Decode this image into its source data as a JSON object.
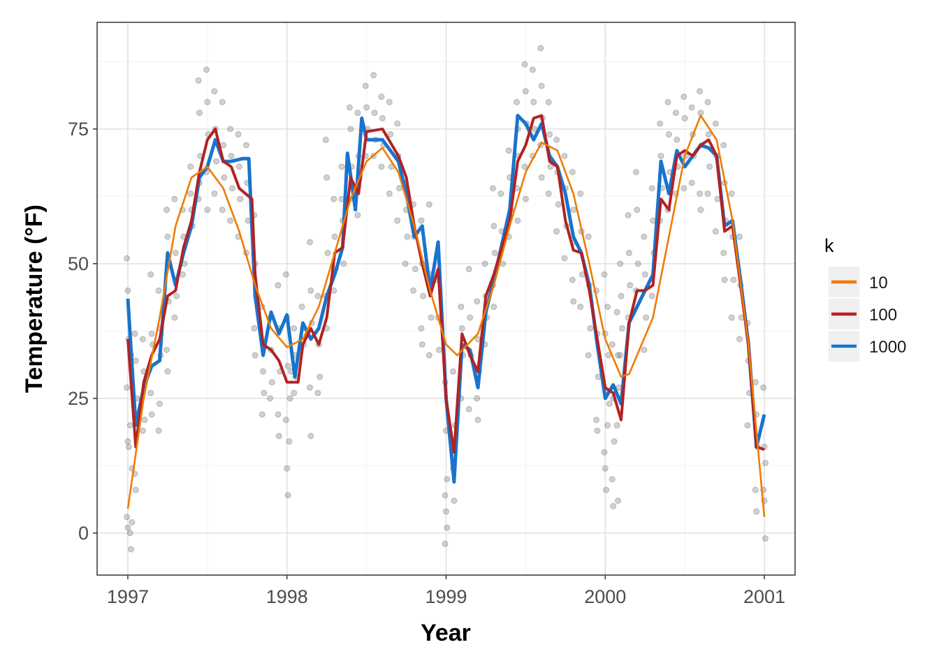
{
  "chart_data": {
    "type": "line",
    "title": "",
    "xlabel": "Year",
    "ylabel": "Temperature (°F)",
    "xlim": [
      1996.807,
      2001.193
    ],
    "ylim": [
      -7.8,
      94.8
    ],
    "x_ticks": [
      1997,
      1998,
      1999,
      2000,
      2001
    ],
    "x_tick_labels": [
      "1997",
      "1998",
      "1999",
      "2000",
      "2001"
    ],
    "y_ticks": [
      0,
      25,
      50,
      75
    ],
    "y_tick_labels": [
      "0",
      "25",
      "50",
      "75"
    ],
    "grid": true,
    "legend": {
      "title": "k",
      "placement": "right",
      "entries": [
        "10",
        "100",
        "1000"
      ]
    },
    "colors": {
      "10": "#ef7b00",
      "100": "#b22222",
      "1000": "#1874cd",
      "points": "#7a7a7a"
    },
    "series": [
      {
        "name": "1000",
        "x": [
          1997.0,
          1997.05,
          1997.1,
          1997.15,
          1997.2,
          1997.25,
          1997.3,
          1997.35,
          1997.4,
          1997.45,
          1997.5,
          1997.55,
          1997.6,
          1997.65,
          1997.72,
          1997.76,
          1997.8,
          1997.85,
          1997.9,
          1997.95,
          1998.0,
          1998.05,
          1998.1,
          1998.15,
          1998.2,
          1998.25,
          1998.3,
          1998.35,
          1998.38,
          1998.43,
          1998.47,
          1998.5,
          1998.6,
          1998.7,
          1998.75,
          1998.8,
          1998.85,
          1998.9,
          1998.95,
          1999.0,
          1999.05,
          1999.1,
          1999.15,
          1999.2,
          1999.25,
          1999.3,
          1999.4,
          1999.45,
          1999.5,
          1999.55,
          1999.6,
          1999.65,
          1999.7,
          1999.75,
          1999.8,
          1999.85,
          1999.9,
          1999.95,
          2000.0,
          2000.05,
          2000.1,
          2000.15,
          2000.2,
          2000.25,
          2000.3,
          2000.35,
          2000.4,
          2000.45,
          2000.5,
          2000.55,
          2000.6,
          2000.65,
          2000.7,
          2000.75,
          2000.8,
          2000.85,
          2000.9,
          2000.95,
          2001.0
        ],
        "y": [
          43.5,
          20,
          27,
          31,
          32,
          52,
          46,
          52,
          57,
          66,
          68,
          73,
          69,
          69,
          69.5,
          69.5,
          44,
          33,
          41,
          37,
          40.5,
          29,
          39,
          36,
          38,
          44,
          48,
          53,
          70.5,
          60,
          77,
          73,
          73,
          69,
          63,
          55,
          57,
          45,
          54,
          25,
          9.5,
          35,
          34,
          27,
          41,
          47,
          60,
          77.5,
          76,
          73,
          76,
          70,
          68,
          63,
          55,
          52,
          46,
          35,
          25,
          27.5,
          24,
          39,
          42,
          45,
          48,
          69,
          63,
          71,
          68,
          70,
          72,
          71.5,
          70,
          57,
          58,
          47,
          35,
          16,
          22
        ]
      },
      {
        "name": "100",
        "x": [
          1997.0,
          1997.05,
          1997.1,
          1997.15,
          1997.2,
          1997.25,
          1997.3,
          1997.35,
          1997.4,
          1997.45,
          1997.5,
          1997.55,
          1997.6,
          1997.65,
          1997.7,
          1997.78,
          1997.8,
          1997.85,
          1997.9,
          1997.95,
          1998.0,
          1998.07,
          1998.1,
          1998.15,
          1998.2,
          1998.25,
          1998.3,
          1998.35,
          1998.4,
          1998.45,
          1998.5,
          1998.6,
          1998.7,
          1998.75,
          1998.8,
          1998.85,
          1998.9,
          1998.95,
          1999.0,
          1999.05,
          1999.1,
          1999.15,
          1999.2,
          1999.25,
          1999.3,
          1999.4,
          1999.45,
          1999.5,
          1999.55,
          1999.6,
          1999.65,
          1999.7,
          1999.75,
          1999.8,
          1999.85,
          1999.9,
          1999.95,
          2000.0,
          2000.05,
          2000.1,
          2000.15,
          2000.2,
          2000.25,
          2000.3,
          2000.35,
          2000.4,
          2000.45,
          2000.5,
          2000.55,
          2000.6,
          2000.65,
          2000.7,
          2000.75,
          2000.8,
          2000.85,
          2000.9,
          2000.95,
          2001.0
        ],
        "y": [
          36,
          16,
          28,
          33,
          36,
          44,
          45,
          53,
          58,
          67,
          73,
          75,
          69,
          68,
          64,
          62,
          48,
          35,
          34,
          32,
          28,
          28,
          35,
          38,
          35,
          40,
          52,
          53,
          66,
          63,
          74.5,
          75,
          70,
          66,
          57,
          50,
          44,
          49,
          25,
          15,
          37,
          33,
          30,
          44,
          48,
          58,
          69,
          72,
          77,
          77.5,
          69,
          68,
          58,
          52.5,
          52,
          45,
          36,
          27,
          26,
          21,
          39,
          45,
          45,
          46,
          62,
          60,
          70,
          71,
          70,
          72,
          73,
          70,
          56,
          57,
          46,
          35,
          16,
          15.5
        ]
      },
      {
        "name": "10",
        "x": [
          1997.0,
          1997.1,
          1997.2,
          1997.3,
          1997.4,
          1997.5,
          1997.6,
          1997.7,
          1997.8,
          1997.9,
          1998.0,
          1998.1,
          1998.2,
          1998.3,
          1998.4,
          1998.5,
          1998.6,
          1998.7,
          1998.8,
          1998.9,
          1999.0,
          1999.07,
          1999.2,
          1999.3,
          1999.4,
          1999.5,
          1999.6,
          1999.7,
          1999.8,
          1999.9,
          2000.0,
          2000.1,
          2000.15,
          2000.3,
          2000.4,
          2000.5,
          2000.6,
          2000.7,
          2000.8,
          2000.9,
          2001.0
        ],
        "y": [
          4.5,
          25,
          40,
          57,
          66,
          68,
          64,
          56,
          46,
          38,
          34.5,
          36,
          42,
          52,
          62,
          69,
          71.5,
          67,
          57,
          45,
          35,
          33,
          37,
          46,
          57,
          67,
          72.5,
          71,
          63,
          50,
          36,
          29,
          29.5,
          40,
          55,
          70,
          77.5,
          73,
          58,
          35,
          3
        ]
      }
    ],
    "points": [
      [
        1997.0,
        [
          51,
          45,
          36,
          27,
          17,
          16,
          3,
          1
        ]
      ],
      [
        1997.02,
        [
          20,
          33,
          12,
          0,
          -3,
          2
        ]
      ],
      [
        1997.05,
        [
          37,
          32,
          25,
          11,
          8
        ]
      ],
      [
        1997.1,
        [
          36,
          30,
          21,
          19
        ]
      ],
      [
        1997.15,
        [
          48,
          37,
          35,
          26,
          22
        ]
      ],
      [
        1997.2,
        [
          45,
          38,
          33,
          19,
          24
        ]
      ],
      [
        1997.25,
        [
          60,
          55,
          43,
          34,
          30
        ]
      ],
      [
        1997.3,
        [
          62,
          52,
          44,
          40
        ]
      ],
      [
        1997.35,
        [
          60,
          55,
          50,
          48
        ]
      ],
      [
        1997.4,
        [
          68,
          60,
          57,
          63
        ]
      ],
      [
        1997.45,
        [
          84,
          78,
          70,
          62,
          65
        ]
      ],
      [
        1997.5,
        [
          86,
          80,
          74,
          67,
          60
        ]
      ],
      [
        1997.55,
        [
          82,
          75,
          69,
          63
        ]
      ],
      [
        1997.6,
        [
          80,
          72,
          66,
          60
        ]
      ],
      [
        1997.65,
        [
          75,
          70,
          64,
          58
        ]
      ],
      [
        1997.7,
        [
          74,
          68,
          62,
          55
        ]
      ],
      [
        1997.75,
        [
          72,
          65,
          58,
          52
        ]
      ],
      [
        1997.8,
        [
          59,
          50,
          44,
          38,
          33
        ]
      ],
      [
        1997.85,
        [
          42,
          30,
          26,
          22
        ]
      ],
      [
        1997.9,
        [
          40,
          34,
          28,
          25
        ]
      ],
      [
        1997.95,
        [
          46,
          38,
          30,
          22,
          18
        ]
      ],
      [
        1998.0,
        [
          48,
          40,
          31,
          21,
          12,
          7
        ]
      ],
      [
        1998.02,
        [
          17,
          25,
          30
        ]
      ],
      [
        1998.05,
        [
          38,
          33,
          29,
          26
        ]
      ],
      [
        1998.1,
        [
          42,
          38,
          35
        ]
      ],
      [
        1998.15,
        [
          54,
          45,
          39,
          27,
          18
        ]
      ],
      [
        1998.2,
        [
          44,
          35,
          29,
          26
        ]
      ],
      [
        1998.25,
        [
          73,
          66,
          52,
          44,
          38
        ]
      ],
      [
        1998.3,
        [
          62,
          55,
          49,
          45
        ]
      ],
      [
        1998.35,
        [
          68,
          58,
          50,
          62
        ]
      ],
      [
        1998.4,
        [
          79,
          75,
          68,
          62
        ]
      ],
      [
        1998.45,
        [
          78,
          70,
          66,
          59
        ]
      ],
      [
        1998.5,
        [
          83,
          79,
          75,
          70
        ]
      ],
      [
        1998.55,
        [
          85,
          78,
          73,
          70
        ]
      ],
      [
        1998.6,
        [
          81,
          77,
          72,
          68
        ]
      ],
      [
        1998.65,
        [
          80,
          74,
          68,
          63
        ]
      ],
      [
        1998.7,
        [
          76,
          70,
          64,
          58
        ]
      ],
      [
        1998.75,
        [
          65,
          60,
          55,
          50
        ]
      ],
      [
        1998.8,
        [
          61,
          55,
          49,
          45
        ]
      ],
      [
        1998.85,
        [
          58,
          50,
          44,
          38,
          35
        ]
      ],
      [
        1998.9,
        [
          61,
          48,
          40,
          33
        ]
      ],
      [
        1998.95,
        [
          47,
          40,
          34
        ]
      ],
      [
        1999.0,
        [
          28,
          19,
          10,
          7,
          4,
          1,
          -2
        ]
      ],
      [
        1999.05,
        [
          12,
          6,
          20,
          30
        ]
      ],
      [
        1999.1,
        [
          42,
          38,
          33,
          25
        ]
      ],
      [
        1999.15,
        [
          49,
          40,
          33,
          23
        ]
      ],
      [
        1999.2,
        [
          43,
          36,
          30,
          25,
          21
        ]
      ],
      [
        1999.25,
        [
          50,
          44,
          40,
          35
        ]
      ],
      [
        1999.3,
        [
          64,
          57,
          52,
          46,
          42
        ]
      ],
      [
        1999.35,
        [
          63,
          56,
          50
        ]
      ],
      [
        1999.4,
        [
          71,
          66,
          60,
          55
        ]
      ],
      [
        1999.45,
        [
          80,
          75,
          70,
          64,
          58
        ]
      ],
      [
        1999.5,
        [
          87,
          82,
          76,
          68,
          62
        ]
      ],
      [
        1999.55,
        [
          86,
          80,
          75,
          70
        ]
      ],
      [
        1999.6,
        [
          90,
          83,
          77,
          72,
          66
        ]
      ],
      [
        1999.65,
        [
          80,
          74,
          68,
          63
        ]
      ],
      [
        1999.7,
        [
          73,
          67,
          61,
          56
        ]
      ],
      [
        1999.75,
        [
          70,
          64,
          57,
          51
        ]
      ],
      [
        1999.8,
        [
          67,
          60,
          54,
          47,
          43
        ]
      ],
      [
        1999.85,
        [
          63,
          56,
          48,
          42
        ]
      ],
      [
        1999.9,
        [
          55,
          46,
          38,
          33
        ]
      ],
      [
        1999.95,
        [
          45,
          37,
          29,
          21,
          19
        ]
      ],
      [
        2000.0,
        [
          48,
          37,
          26,
          15,
          12,
          8
        ]
      ],
      [
        2000.02,
        [
          42,
          33,
          24,
          20
        ]
      ],
      [
        2000.05,
        [
          35,
          25,
          17,
          10,
          5
        ]
      ],
      [
        2000.08,
        [
          41,
          33,
          27,
          20,
          6
        ]
      ],
      [
        2000.1,
        [
          50,
          44,
          38,
          33
        ]
      ],
      [
        2000.15,
        [
          59,
          52,
          46,
          40
        ]
      ],
      [
        2000.2,
        [
          67,
          60,
          50,
          45
        ]
      ],
      [
        2000.25,
        [
          55,
          48,
          40,
          34
        ]
      ],
      [
        2000.3,
        [
          64,
          58,
          52,
          44
        ]
      ],
      [
        2000.35,
        [
          76,
          70,
          64,
          58
        ]
      ],
      [
        2000.4,
        [
          80,
          74,
          67,
          60
        ]
      ],
      [
        2000.45,
        [
          78,
          73,
          68,
          63
        ]
      ],
      [
        2000.5,
        [
          81,
          77,
          70,
          64
        ]
      ],
      [
        2000.55,
        [
          79,
          74,
          70,
          65
        ]
      ],
      [
        2000.6,
        [
          82,
          78,
          72,
          63,
          60
        ]
      ],
      [
        2000.65,
        [
          80,
          74,
          68,
          63
        ]
      ],
      [
        2000.7,
        [
          76,
          70,
          62,
          56
        ]
      ],
      [
        2000.75,
        [
          72,
          65,
          58,
          52,
          47
        ]
      ],
      [
        2000.8,
        [
          63,
          55,
          47,
          40
        ]
      ],
      [
        2000.85,
        [
          55,
          46,
          40,
          36
        ]
      ],
      [
        2000.9,
        [
          39,
          32,
          26,
          20
        ]
      ],
      [
        2000.95,
        [
          28,
          22,
          16,
          8,
          4
        ]
      ],
      [
        2001.0,
        [
          27,
          16,
          13,
          8,
          6,
          -1
        ]
      ]
    ]
  }
}
